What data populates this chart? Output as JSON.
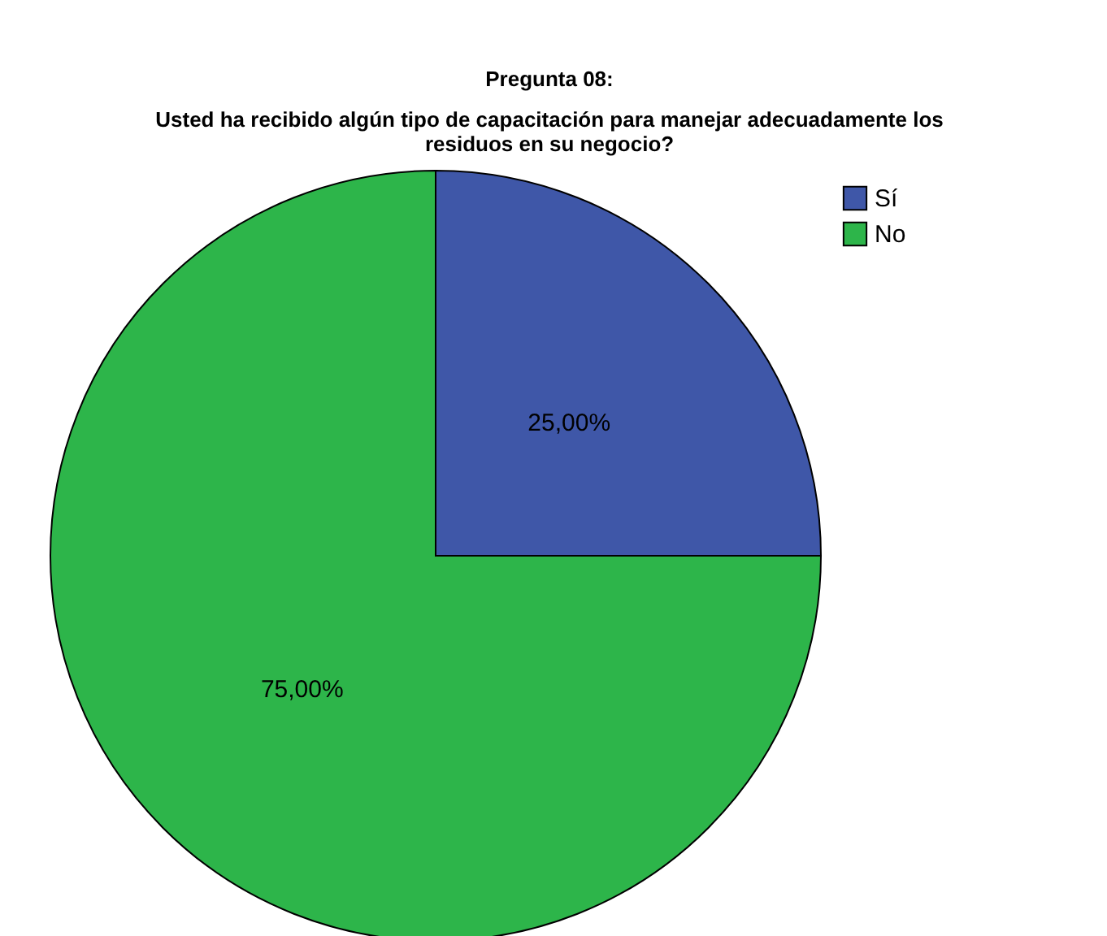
{
  "chart_data": {
    "type": "pie",
    "title": "Pregunta 08:",
    "subtitle": "Usted ha recibido algún tipo de capacitación para manejar adecuadamente los residuos en su negocio?",
    "categories": [
      "Sí",
      "No"
    ],
    "values": [
      25,
      75
    ],
    "colors": [
      "#3f57a8",
      "#2db54a"
    ],
    "value_labels": [
      "25,00%",
      "75,00%"
    ],
    "legend": "top right"
  }
}
